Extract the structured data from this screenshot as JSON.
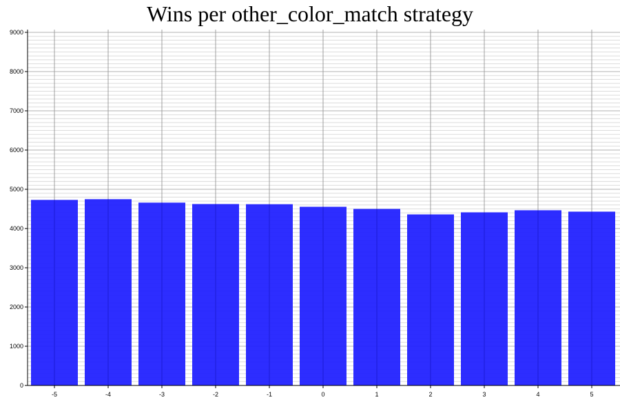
{
  "chart_data": {
    "type": "bar",
    "title": "Wins per other_color_match strategy",
    "xlabel": "",
    "ylabel": "",
    "categories": [
      "-5",
      "-4",
      "-3",
      "-2",
      "-1",
      "0",
      "1",
      "2",
      "3",
      "4",
      "5"
    ],
    "values": [
      4730,
      4748,
      4660,
      4624,
      4620,
      4554,
      4500,
      4360,
      4413,
      4466,
      4430
    ],
    "ylim": [
      0,
      9000
    ],
    "yticks": [
      0,
      1000,
      2000,
      3000,
      4000,
      5000,
      6000,
      7000,
      8000,
      9000
    ],
    "minor_grid_step": 100,
    "grid": true,
    "bar_color": "#2222ff"
  }
}
